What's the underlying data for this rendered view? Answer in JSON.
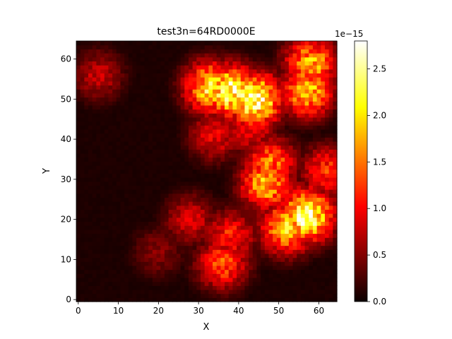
{
  "chart_data": {
    "type": "heatmap",
    "title": "test3n=64RD0000E",
    "xlabel": "X",
    "ylabel": "Y",
    "xlim": [
      -0.5,
      64.5
    ],
    "ylim": [
      -0.5,
      64.5
    ],
    "grid_size": 65,
    "xticks": [
      "0",
      "10",
      "20",
      "30",
      "40",
      "50",
      "60"
    ],
    "yticks": [
      "0",
      "10",
      "20",
      "30",
      "40",
      "50",
      "60"
    ],
    "colormap": "hot",
    "colorbar": {
      "range": [
        0.0,
        2.8
      ],
      "offset_label": "1e−15",
      "ticks": [
        "0.0",
        "0.5",
        "1.0",
        "1.5",
        "2.0",
        "2.5"
      ]
    },
    "approx_hotspots": [
      {
        "x": 38,
        "y": 52,
        "value": 2.6
      },
      {
        "x": 44,
        "y": 50,
        "value": 2.8
      },
      {
        "x": 33,
        "y": 53,
        "value": 2.2
      },
      {
        "x": 57,
        "y": 52,
        "value": 2.0
      },
      {
        "x": 58,
        "y": 59,
        "value": 1.9
      },
      {
        "x": 57,
        "y": 21,
        "value": 2.7
      },
      {
        "x": 52,
        "y": 18,
        "value": 2.1
      },
      {
        "x": 47,
        "y": 29,
        "value": 2.0
      },
      {
        "x": 48,
        "y": 34,
        "value": 1.6
      },
      {
        "x": 36,
        "y": 9,
        "value": 1.4
      },
      {
        "x": 38,
        "y": 16,
        "value": 1.2
      },
      {
        "x": 34,
        "y": 41,
        "value": 1.0
      },
      {
        "x": 5,
        "y": 56,
        "value": 0.8
      },
      {
        "x": 62,
        "y": 32,
        "value": 1.3
      },
      {
        "x": 43,
        "y": 43,
        "value": 1.1
      },
      {
        "x": 28,
        "y": 20,
        "value": 0.9
      },
      {
        "x": 20,
        "y": 12,
        "value": 0.55
      }
    ]
  }
}
